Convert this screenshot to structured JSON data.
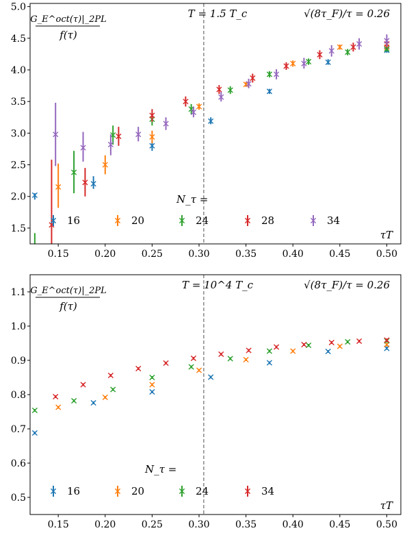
{
  "chart_data": [
    {
      "type": "scatter",
      "title": "T = 1.5 T_c",
      "ylabel": "G_E^oct(τ)|_2PL / f(τ)",
      "ylabel_numerator": "G_E^oct(τ)|_2PL",
      "ylabel_denominator": "f(τ)",
      "xlabel": "τT",
      "annotation_right": "√(8τ_F)/τ = 0.26",
      "legend_title": "N_τ =",
      "legend_placement": "bottom",
      "xlim": [
        0.12,
        0.515
      ],
      "ylim": [
        1.25,
        5.05
      ],
      "xticks": [
        0.15,
        0.2,
        0.25,
        0.3,
        0.35,
        0.4,
        0.45,
        0.5
      ],
      "xtick_labels": [
        "0.15",
        "0.20",
        "0.25",
        "0.30",
        "0.35",
        "0.40",
        "0.45",
        "0.50"
      ],
      "yticks": [
        1.5,
        2.0,
        2.5,
        3.0,
        3.5,
        4.0,
        4.5,
        5.0
      ],
      "ytick_labels": [
        "1.5",
        "2.0",
        "2.5",
        "3.0",
        "3.5",
        "4.0",
        "4.5",
        "5.0"
      ],
      "vline_x": 0.305,
      "grid": false,
      "series": [
        {
          "name": "16",
          "color": "#1f77b4",
          "points": [
            {
              "x": 0.125,
              "y": 2.02,
              "lo": 1.95,
              "hi": 2.05
            },
            {
              "x": 0.1875,
              "y": 2.2,
              "lo": 2.12,
              "hi": 2.32
            },
            {
              "x": 0.25,
              "y": 2.8,
              "lo": 2.72,
              "hi": 2.88
            },
            {
              "x": 0.3125,
              "y": 3.19,
              "lo": 3.14,
              "hi": 3.25
            },
            {
              "x": 0.375,
              "y": 3.66,
              "lo": 3.62,
              "hi": 3.7
            },
            {
              "x": 0.4375,
              "y": 4.12,
              "lo": 4.08,
              "hi": 4.17
            },
            {
              "x": 0.5,
              "y": 4.31,
              "lo": 4.27,
              "hi": 4.35
            }
          ]
        },
        {
          "name": "20",
          "color": "#ff7f0e",
          "points": [
            {
              "x": 0.15,
              "y": 2.15,
              "lo": 1.82,
              "hi": 2.52
            },
            {
              "x": 0.2,
              "y": 2.5,
              "lo": 2.35,
              "hi": 2.65
            },
            {
              "x": 0.25,
              "y": 2.94,
              "lo": 2.84,
              "hi": 3.04
            },
            {
              "x": 0.3,
              "y": 3.42,
              "lo": 3.37,
              "hi": 3.47
            },
            {
              "x": 0.35,
              "y": 3.77,
              "lo": 3.73,
              "hi": 3.81
            },
            {
              "x": 0.4,
              "y": 4.1,
              "lo": 4.05,
              "hi": 4.15
            },
            {
              "x": 0.45,
              "y": 4.36,
              "lo": 4.32,
              "hi": 4.4
            },
            {
              "x": 0.5,
              "y": 4.36,
              "lo": 4.32,
              "hi": 4.41
            }
          ]
        },
        {
          "name": "24",
          "color": "#2ca02c",
          "points": [
            {
              "x": 0.125,
              "y": 1.05,
              "lo": 1.0,
              "hi": 1.42
            },
            {
              "x": 0.1667,
              "y": 2.38,
              "lo": 2.05,
              "hi": 2.72
            },
            {
              "x": 0.2083,
              "y": 2.97,
              "lo": 2.82,
              "hi": 3.12
            },
            {
              "x": 0.25,
              "y": 3.22,
              "lo": 3.12,
              "hi": 3.32
            },
            {
              "x": 0.2917,
              "y": 3.38,
              "lo": 3.3,
              "hi": 3.46
            },
            {
              "x": 0.3333,
              "y": 3.68,
              "lo": 3.62,
              "hi": 3.74
            },
            {
              "x": 0.375,
              "y": 3.93,
              "lo": 3.88,
              "hi": 3.98
            },
            {
              "x": 0.4167,
              "y": 4.13,
              "lo": 4.08,
              "hi": 4.18
            },
            {
              "x": 0.4583,
              "y": 4.28,
              "lo": 4.23,
              "hi": 4.33
            },
            {
              "x": 0.5,
              "y": 4.33,
              "lo": 4.29,
              "hi": 4.37
            }
          ]
        },
        {
          "name": "28",
          "color": "#d62728",
          "points": [
            {
              "x": 0.1429,
              "y": 1.55,
              "lo": 1.0,
              "hi": 2.58
            },
            {
              "x": 0.1786,
              "y": 2.22,
              "lo": 2.0,
              "hi": 2.45
            },
            {
              "x": 0.2143,
              "y": 2.95,
              "lo": 2.8,
              "hi": 3.1
            },
            {
              "x": 0.25,
              "y": 3.28,
              "lo": 3.18,
              "hi": 3.38
            },
            {
              "x": 0.2857,
              "y": 3.5,
              "lo": 3.42,
              "hi": 3.58
            },
            {
              "x": 0.3214,
              "y": 3.69,
              "lo": 3.62,
              "hi": 3.76
            },
            {
              "x": 0.3571,
              "y": 3.87,
              "lo": 3.8,
              "hi": 3.94
            },
            {
              "x": 0.3929,
              "y": 4.06,
              "lo": 4.0,
              "hi": 4.12
            },
            {
              "x": 0.4286,
              "y": 4.24,
              "lo": 4.17,
              "hi": 4.31
            },
            {
              "x": 0.4643,
              "y": 4.36,
              "lo": 4.29,
              "hi": 4.43
            },
            {
              "x": 0.5,
              "y": 4.41,
              "lo": 4.35,
              "hi": 4.47
            }
          ]
        },
        {
          "name": "34",
          "color": "#9467bd",
          "points": [
            {
              "x": 0.1471,
              "y": 2.98,
              "lo": 2.48,
              "hi": 3.48
            },
            {
              "x": 0.1765,
              "y": 2.77,
              "lo": 2.55,
              "hi": 3.02
            },
            {
              "x": 0.2059,
              "y": 2.82,
              "lo": 2.65,
              "hi": 2.98
            },
            {
              "x": 0.2353,
              "y": 2.98,
              "lo": 2.87,
              "hi": 3.1
            },
            {
              "x": 0.2647,
              "y": 3.15,
              "lo": 3.05,
              "hi": 3.25
            },
            {
              "x": 0.2941,
              "y": 3.33,
              "lo": 3.25,
              "hi": 3.42
            },
            {
              "x": 0.3235,
              "y": 3.57,
              "lo": 3.5,
              "hi": 3.65
            },
            {
              "x": 0.3529,
              "y": 3.78,
              "lo": 3.71,
              "hi": 3.86
            },
            {
              "x": 0.3824,
              "y": 3.93,
              "lo": 3.85,
              "hi": 4.01
            },
            {
              "x": 0.4118,
              "y": 4.1,
              "lo": 4.02,
              "hi": 4.19
            },
            {
              "x": 0.4412,
              "y": 4.3,
              "lo": 4.21,
              "hi": 4.39
            },
            {
              "x": 0.4706,
              "y": 4.41,
              "lo": 4.32,
              "hi": 4.5
            },
            {
              "x": 0.5,
              "y": 4.46,
              "lo": 4.37,
              "hi": 4.56
            }
          ]
        }
      ]
    },
    {
      "type": "scatter",
      "title": "T = 10^4 T_c",
      "ylabel": "G_E^oct(τ)|_2PL / f(τ)",
      "ylabel_numerator": "G_E^oct(τ)|_2PL",
      "ylabel_denominator": "f(τ)",
      "xlabel": "τT",
      "annotation_right": "√(8τ_F)/τ = 0.26",
      "legend_title": "N_τ =",
      "legend_placement": "bottom",
      "xlim": [
        0.12,
        0.515
      ],
      "ylim": [
        0.45,
        1.15
      ],
      "xticks": [
        0.15,
        0.2,
        0.25,
        0.3,
        0.35,
        0.4,
        0.45,
        0.5
      ],
      "xtick_labels": [
        "0.15",
        "0.20",
        "0.25",
        "0.30",
        "0.35",
        "0.40",
        "0.45",
        "0.50"
      ],
      "yticks": [
        0.5,
        0.6,
        0.7,
        0.8,
        0.9,
        1.0,
        1.1
      ],
      "ytick_labels": [
        "0.5",
        "0.6",
        "0.7",
        "0.8",
        "0.9",
        "1.0",
        "1.1"
      ],
      "vline_x": 0.305,
      "grid": false,
      "series": [
        {
          "name": "16",
          "color": "#1f77b4",
          "points": [
            {
              "x": 0.125,
              "y": 0.688,
              "lo": 0.684,
              "hi": 0.692
            },
            {
              "x": 0.1875,
              "y": 0.776,
              "lo": 0.772,
              "hi": 0.78
            },
            {
              "x": 0.25,
              "y": 0.808,
              "lo": 0.804,
              "hi": 0.812
            },
            {
              "x": 0.3125,
              "y": 0.851,
              "lo": 0.847,
              "hi": 0.855
            },
            {
              "x": 0.375,
              "y": 0.893,
              "lo": 0.889,
              "hi": 0.897
            },
            {
              "x": 0.4375,
              "y": 0.926,
              "lo": 0.922,
              "hi": 0.93
            },
            {
              "x": 0.5,
              "y": 0.935,
              "lo": 0.931,
              "hi": 0.94
            }
          ]
        },
        {
          "name": "20",
          "color": "#ff7f0e",
          "points": [
            {
              "x": 0.15,
              "y": 0.763,
              "lo": 0.759,
              "hi": 0.767
            },
            {
              "x": 0.2,
              "y": 0.792,
              "lo": 0.788,
              "hi": 0.796
            },
            {
              "x": 0.25,
              "y": 0.829,
              "lo": 0.825,
              "hi": 0.833
            },
            {
              "x": 0.3,
              "y": 0.871,
              "lo": 0.867,
              "hi": 0.875
            },
            {
              "x": 0.35,
              "y": 0.902,
              "lo": 0.898,
              "hi": 0.906
            },
            {
              "x": 0.4,
              "y": 0.927,
              "lo": 0.923,
              "hi": 0.931
            },
            {
              "x": 0.45,
              "y": 0.941,
              "lo": 0.937,
              "hi": 0.945
            },
            {
              "x": 0.5,
              "y": 0.946,
              "lo": 0.941,
              "hi": 0.951
            }
          ]
        },
        {
          "name": "24",
          "color": "#2ca02c",
          "points": [
            {
              "x": 0.125,
              "y": 0.754,
              "lo": 0.75,
              "hi": 0.758
            },
            {
              "x": 0.1667,
              "y": 0.782,
              "lo": 0.778,
              "hi": 0.786
            },
            {
              "x": 0.2083,
              "y": 0.815,
              "lo": 0.811,
              "hi": 0.819
            },
            {
              "x": 0.25,
              "y": 0.85,
              "lo": 0.846,
              "hi": 0.854
            },
            {
              "x": 0.2917,
              "y": 0.881,
              "lo": 0.877,
              "hi": 0.885
            },
            {
              "x": 0.3333,
              "y": 0.905,
              "lo": 0.901,
              "hi": 0.909
            },
            {
              "x": 0.375,
              "y": 0.927,
              "lo": 0.923,
              "hi": 0.931
            },
            {
              "x": 0.4167,
              "y": 0.944,
              "lo": 0.94,
              "hi": 0.948
            },
            {
              "x": 0.4583,
              "y": 0.954,
              "lo": 0.95,
              "hi": 0.958
            },
            {
              "x": 0.5,
              "y": 0.957,
              "lo": 0.952,
              "hi": 0.962
            }
          ]
        },
        {
          "name": "34",
          "color": "#d62728",
          "points": [
            {
              "x": 0.1471,
              "y": 0.794,
              "lo": 0.79,
              "hi": 0.798
            },
            {
              "x": 0.1765,
              "y": 0.829,
              "lo": 0.825,
              "hi": 0.833
            },
            {
              "x": 0.2059,
              "y": 0.856,
              "lo": 0.852,
              "hi": 0.86
            },
            {
              "x": 0.2353,
              "y": 0.876,
              "lo": 0.872,
              "hi": 0.88
            },
            {
              "x": 0.2647,
              "y": 0.892,
              "lo": 0.888,
              "hi": 0.896
            },
            {
              "x": 0.2941,
              "y": 0.906,
              "lo": 0.902,
              "hi": 0.91
            },
            {
              "x": 0.3235,
              "y": 0.918,
              "lo": 0.914,
              "hi": 0.922
            },
            {
              "x": 0.3529,
              "y": 0.929,
              "lo": 0.925,
              "hi": 0.933
            },
            {
              "x": 0.3824,
              "y": 0.939,
              "lo": 0.935,
              "hi": 0.943
            },
            {
              "x": 0.4118,
              "y": 0.946,
              "lo": 0.942,
              "hi": 0.95
            },
            {
              "x": 0.4412,
              "y": 0.952,
              "lo": 0.948,
              "hi": 0.956
            },
            {
              "x": 0.4706,
              "y": 0.956,
              "lo": 0.952,
              "hi": 0.96
            },
            {
              "x": 0.5,
              "y": 0.959,
              "lo": 0.954,
              "hi": 0.964
            }
          ]
        }
      ]
    }
  ]
}
